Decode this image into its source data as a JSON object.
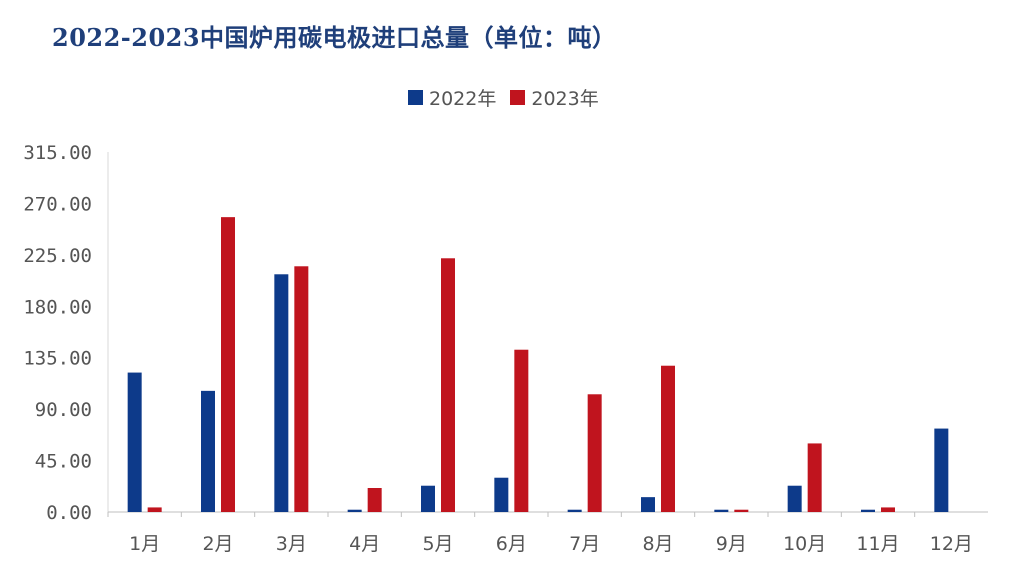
{
  "title": "2022-2023中国炉用碳电极进口总量（单位：吨）",
  "chart_data": {
    "type": "bar",
    "title": "2022-2023中国炉用碳电极进口总量（单位：吨）",
    "categories": [
      "1月",
      "2月",
      "3月",
      "4月",
      "5月",
      "6月",
      "7月",
      "8月",
      "9月",
      "10月",
      "11月",
      "12月"
    ],
    "series": [
      {
        "name": "2022年",
        "color": "#0d3a8a",
        "values": [
          122,
          106,
          208,
          2,
          23,
          30,
          2,
          13,
          2,
          23,
          2,
          73
        ]
      },
      {
        "name": "2023年",
        "color": "#c0141e",
        "values": [
          4,
          258,
          215,
          21,
          222,
          142,
          103,
          128,
          2,
          60,
          4,
          0
        ]
      }
    ],
    "yticks": [
      "0.00",
      "45.00",
      "90.00",
      "135.00",
      "180.00",
      "225.00",
      "270.00",
      "315.00"
    ],
    "ylim": [
      0,
      315
    ],
    "grid": false,
    "legend_position": "top"
  }
}
